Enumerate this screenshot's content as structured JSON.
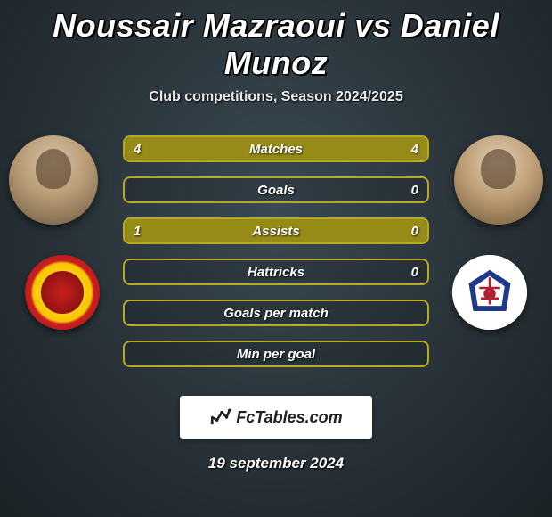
{
  "title": "Noussair Mazraoui vs Daniel Munoz",
  "subtitle": "Club competitions, Season 2024/2025",
  "accent_color": "#a89a1a",
  "bar_fill_color": "#968a18",
  "bar_border_color": "#b8a822",
  "stats": [
    {
      "label": "Matches",
      "left_val": "4",
      "right_val": "4",
      "left_pct": 50,
      "right_pct": 50
    },
    {
      "label": "Goals",
      "left_val": "",
      "right_val": "0",
      "left_pct": 0,
      "right_pct": 0
    },
    {
      "label": "Assists",
      "left_val": "1",
      "right_val": "0",
      "left_pct": 100,
      "right_pct": 0
    },
    {
      "label": "Hattricks",
      "left_val": "",
      "right_val": "0",
      "left_pct": 0,
      "right_pct": 0
    },
    {
      "label": "Goals per match",
      "left_val": "",
      "right_val": "",
      "left_pct": 0,
      "right_pct": 0
    },
    {
      "label": "Min per goal",
      "left_val": "",
      "right_val": "",
      "left_pct": 0,
      "right_pct": 0
    }
  ],
  "footer_brand": "FcTables.com",
  "date": "19 september 2024"
}
